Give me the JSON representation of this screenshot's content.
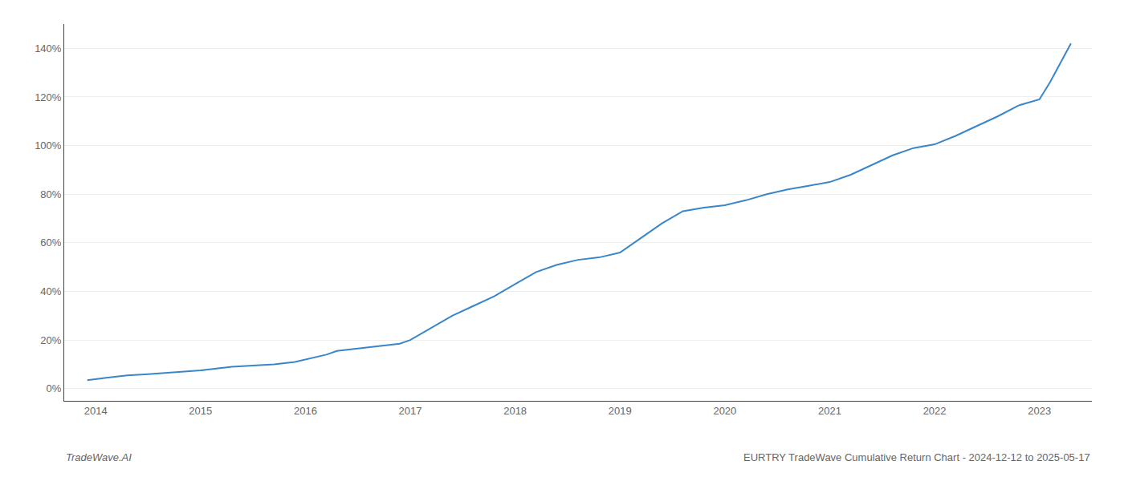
{
  "chart_data": {
    "type": "line",
    "x": [
      2013.92,
      2014.0,
      2014.1,
      2014.2,
      2014.3,
      2014.5,
      2014.7,
      2014.9,
      2015.0,
      2015.1,
      2015.2,
      2015.3,
      2015.5,
      2015.7,
      2015.9,
      2016.0,
      2016.1,
      2016.2,
      2016.3,
      2016.5,
      2016.7,
      2016.9,
      2017.0,
      2017.2,
      2017.4,
      2017.6,
      2017.8,
      2018.0,
      2018.2,
      2018.4,
      2018.6,
      2018.8,
      2019.0,
      2019.2,
      2019.4,
      2019.6,
      2019.8,
      2020.0,
      2020.2,
      2020.4,
      2020.6,
      2020.8,
      2021.0,
      2021.2,
      2021.4,
      2021.6,
      2021.8,
      2022.0,
      2022.2,
      2022.4,
      2022.6,
      2022.8,
      2023.0,
      2023.1,
      2023.2,
      2023.3
    ],
    "values": [
      3.5,
      4.0,
      4.5,
      5.0,
      5.5,
      6.0,
      6.5,
      7.0,
      7.5,
      8.0,
      8.5,
      9.0,
      9.5,
      10.0,
      11.0,
      12.0,
      13.0,
      14.0,
      15.5,
      16.5,
      17.5,
      18.5,
      20.0,
      25.0,
      30.0,
      34.0,
      38.0,
      43.0,
      48.0,
      51.0,
      53.0,
      54.0,
      56.0,
      62.0,
      68.0,
      73.0,
      74.5,
      75.5,
      77.5,
      80.0,
      82.0,
      83.5,
      85.0,
      88.0,
      92.0,
      96.0,
      99.0,
      100.5,
      104.0,
      108.0,
      112.0,
      116.5,
      119.0,
      126.0,
      134.0,
      142.0
    ],
    "color": "#3a86c8",
    "xlim": [
      2013.7,
      2023.5
    ],
    "xticks": [
      2014,
      2015,
      2016,
      2017,
      2018,
      2019,
      2020,
      2021,
      2022,
      2023
    ],
    "ylim": [
      -5,
      150
    ],
    "yticks": [
      {
        "value": 0,
        "label": "0%"
      },
      {
        "value": 20,
        "label": "20%"
      },
      {
        "value": 40,
        "label": "40%"
      },
      {
        "value": 60,
        "label": "60%"
      },
      {
        "value": 80,
        "label": "80%"
      },
      {
        "value": 100,
        "label": "100%"
      },
      {
        "value": 120,
        "label": "120%"
      },
      {
        "value": 140,
        "label": "140%"
      }
    ],
    "grid": "y",
    "annotations": [
      "TradeWave.AI",
      "EURTRY TradeWave Cumulative Return Chart - 2024-12-12 to 2025-05-17"
    ]
  }
}
